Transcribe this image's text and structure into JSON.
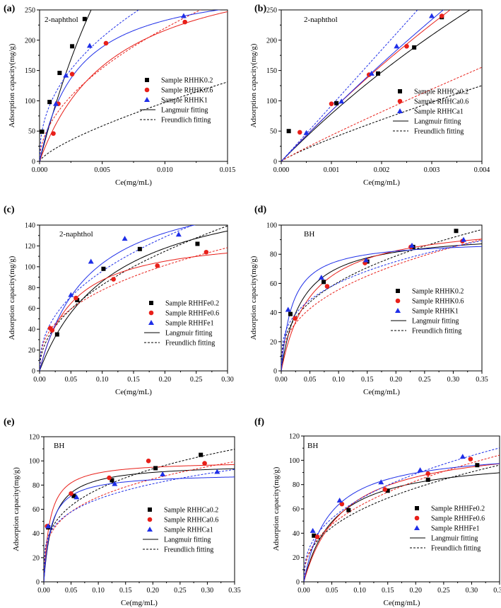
{
  "colors": {
    "black": "#000000",
    "red": "#e8201a",
    "blue": "#1f2fe8"
  },
  "chart_data": [
    {
      "type": "scatter",
      "panel_label": "(a)",
      "annotation": "2-naphthol",
      "xlabel": "Ce(mg/mL)",
      "ylabel": "Adsorption capacity(mg/g)",
      "xlim": [
        0,
        0.015
      ],
      "ylim": [
        0,
        250
      ],
      "xticks": [
        0,
        0.005,
        0.01,
        0.015
      ],
      "xtick_labels": [
        "0.000",
        "0.005",
        "0.010",
        "0.015"
      ],
      "yticks": [
        0,
        50,
        100,
        150,
        200,
        250
      ],
      "ytick_labels": [
        "0",
        "50",
        "100",
        "150",
        "200",
        "250"
      ],
      "legend_position": "right",
      "series": [
        {
          "name": "Sample RHHK0.2",
          "color": "black",
          "marker": "square",
          "points": [
            [
              0.0002,
              49
            ],
            [
              0.0008,
              98
            ],
            [
              0.0016,
              146
            ],
            [
              0.0026,
              190
            ],
            [
              0.0036,
              235
            ]
          ],
          "langmuir": {
            "qm": 1010,
            "k": 80
          },
          "freundlich": {
            "k": 2875,
            "n": 1.36
          }
        },
        {
          "name": "Sample RHHK0.6",
          "color": "red",
          "marker": "circle",
          "points": [
            [
              0.0011,
              46
            ],
            [
              0.0015,
              95
            ],
            [
              0.0026,
              144
            ],
            [
              0.0053,
              195
            ],
            [
              0.0116,
              230
            ]
          ],
          "langmuir": {
            "qm": 347,
            "k": 165
          },
          "freundlich": {
            "k": 2360,
            "n": 1.94
          }
        },
        {
          "name": "Sample RHHK1",
          "color": "blue",
          "marker": "triangle",
          "points": [
            [
              0.0013,
              95
            ],
            [
              0.0021,
              142
            ],
            [
              0.004,
              191
            ],
            [
              0.0115,
              240
            ]
          ],
          "langmuir": {
            "qm": 303,
            "k": 330
          },
          "freundlich": {
            "k": 2050,
            "n": 2.3
          }
        }
      ],
      "fit_legend": {
        "langmuir": "Langmuir fitting",
        "freundlich": "Freundlich fitting"
      }
    },
    {
      "type": "scatter",
      "panel_label": "(b)",
      "annotation": "2-naphthol",
      "xlabel": "Ce(mg/mL)",
      "ylabel": "Adsorption capacity(mg/g)",
      "xlim": [
        0,
        0.004
      ],
      "ylim": [
        0,
        250
      ],
      "xticks": [
        0,
        0.001,
        0.002,
        0.003,
        0.004
      ],
      "xtick_labels": [
        "0.000",
        "0.001",
        "0.002",
        "0.003",
        "0.004"
      ],
      "yticks": [
        0,
        50,
        100,
        150,
        200,
        250
      ],
      "ytick_labels": [
        "0",
        "50",
        "100",
        "150",
        "200",
        "250"
      ],
      "legend_position": "right",
      "series": [
        {
          "name": "Sample RHHCa0.2",
          "color": "black",
          "marker": "square",
          "points": [
            [
              0.00015,
              50
            ],
            [
              0.0011,
              96
            ],
            [
              0.00193,
              145
            ],
            [
              0.00265,
              188
            ],
            [
              0.0032,
              238
            ]
          ],
          "langmuir": {
            "qm": 1200,
            "k": 70
          },
          "freundlich": {
            "k": 14600,
            "n": 1.16
          }
        },
        {
          "name": "Sample RHHCa0.6",
          "color": "red",
          "marker": "circle",
          "points": [
            [
              0.00037,
              48
            ],
            [
              0.001,
              95
            ],
            [
              0.00175,
              143
            ],
            [
              0.0025,
              190
            ],
            [
              0.0032,
              240
            ]
          ],
          "langmuir": {
            "qm": 1600,
            "k": 55
          },
          "freundlich": {
            "k": 25800,
            "n": 1.08
          }
        },
        {
          "name": "Sample RHHCa1",
          "color": "blue",
          "marker": "triangle",
          "points": [
            [
              0.0005,
              47
            ],
            [
              0.0012,
              99
            ],
            [
              0.0018,
              145
            ],
            [
              0.0023,
              190
            ],
            [
              0.003,
              240
            ]
          ],
          "langmuir": {
            "qm": 2400,
            "k": 36
          },
          "freundlich": {
            "k": 92000,
            "n": 1.0
          }
        }
      ],
      "fit_legend": {
        "langmuir": "Langmuir fitting",
        "freundlich": "Freundlich fitting"
      }
    },
    {
      "type": "scatter",
      "panel_label": "(c)",
      "annotation": "2-naphthol",
      "xlabel": "Ce(mg/mL)",
      "ylabel": "Adsorption capacity(mg/g)",
      "xlim": [
        0,
        0.3
      ],
      "ylim": [
        0,
        140
      ],
      "xticks": [
        0,
        0.05,
        0.1,
        0.15,
        0.2,
        0.25,
        0.3
      ],
      "xtick_labels": [
        "0.00",
        "0.05",
        "0.10",
        "0.15",
        "0.20",
        "0.25",
        "0.30"
      ],
      "yticks": [
        0,
        20,
        40,
        60,
        80,
        100,
        120,
        140
      ],
      "ytick_labels": [
        "0",
        "20",
        "40",
        "60",
        "80",
        "100",
        "120",
        "140"
      ],
      "legend_position": "lower-right",
      "series": [
        {
          "name": "Sample RHHFe0.2",
          "color": "black",
          "marker": "square",
          "points": [
            [
              0.028,
              35
            ],
            [
              0.06,
              68
            ],
            [
              0.102,
              98
            ],
            [
              0.16,
              117
            ],
            [
              0.252,
              122
            ]
          ],
          "langmuir": {
            "qm": 187,
            "k": 8.5
          },
          "freundlich": {
            "k": 247,
            "n": 2.1
          }
        },
        {
          "name": "Sample RHHFe0.6",
          "color": "red",
          "marker": "circle",
          "points": [
            [
              0.017,
              41
            ],
            [
              0.02,
              39
            ],
            [
              0.058,
              70
            ],
            [
              0.118,
              88
            ],
            [
              0.188,
              101
            ],
            [
              0.266,
              114
            ]
          ],
          "langmuir": {
            "qm": 133,
            "k": 19
          },
          "freundlich": {
            "k": 188,
            "n": 2.6
          }
        },
        {
          "name": "Sample RHHFe1",
          "color": "blue",
          "marker": "triangle",
          "points": [
            [
              0.05,
              73
            ],
            [
              0.082,
              105
            ],
            [
              0.136,
              127
            ],
            [
              0.222,
              131
            ]
          ],
          "langmuir": {
            "qm": 185,
            "k": 12.6
          },
          "freundlich": {
            "k": 255,
            "n": 2.35
          }
        }
      ],
      "fit_legend": {
        "langmuir": "Langmuir fitting",
        "freundlich": "Freundlich fitting"
      }
    },
    {
      "type": "scatter",
      "panel_label": "(d)",
      "annotation": "BH",
      "xlabel": "Ce(mg/mL)",
      "ylabel": "Adsorption capacity(mg/g)",
      "xlim": [
        0,
        0.35
      ],
      "ylim": [
        0,
        100
      ],
      "xticks": [
        0,
        0.05,
        0.1,
        0.15,
        0.2,
        0.25,
        0.3,
        0.35
      ],
      "xtick_labels": [
        "0.00",
        "0.05",
        "0.10",
        "0.15",
        "0.20",
        "0.25",
        "0.30",
        "0.35"
      ],
      "yticks": [
        0,
        20,
        40,
        60,
        80,
        100
      ],
      "ytick_labels": [
        "0",
        "20",
        "40",
        "60",
        "80",
        "100"
      ],
      "legend_position": "lower-right",
      "series": [
        {
          "name": "Sample RHHK0.2",
          "color": "black",
          "marker": "square",
          "points": [
            [
              0.016,
              39
            ],
            [
              0.074,
              61
            ],
            [
              0.15,
              75
            ],
            [
              0.23,
              85
            ],
            [
              0.305,
              96
            ]
          ],
          "langmuir": {
            "qm": 96,
            "k": 28
          },
          "freundlich": {
            "k": 143,
            "n": 2.7
          }
        },
        {
          "name": "Sample RHHK0.6",
          "color": "red",
          "marker": "circle",
          "points": [
            [
              0.024,
              36
            ],
            [
              0.08,
              58
            ],
            [
              0.146,
              74
            ],
            [
              0.226,
              85
            ],
            [
              0.316,
              89
            ]
          ],
          "langmuir": {
            "qm": 104,
            "k": 19
          },
          "freundlich": {
            "k": 135,
            "n": 2.6
          }
        },
        {
          "name": "Sample RHHK1",
          "color": "blue",
          "marker": "triangle",
          "points": [
            [
              0.012,
              42
            ],
            [
              0.07,
              64
            ],
            [
              0.148,
              76
            ],
            [
              0.228,
              86
            ],
            [
              0.318,
              90
            ]
          ],
          "langmuir": {
            "qm": 90,
            "k": 52
          },
          "freundlich": {
            "k": 124,
            "n": 3.2
          }
        }
      ],
      "fit_legend": {
        "langmuir": "Langmuir fitting",
        "freundlich": "Freundlich fitting"
      }
    },
    {
      "type": "scatter",
      "panel_label": "(e)",
      "annotation": "BH",
      "xlabel": "Ce(mg/mL)",
      "ylabel": "Adsorption capacity(mg/g)",
      "xlim": [
        0,
        0.35
      ],
      "ylim": [
        0,
        120
      ],
      "xticks": [
        0,
        0.05,
        0.1,
        0.15,
        0.2,
        0.25,
        0.3,
        0.35
      ],
      "xtick_labels": [
        "0.00",
        "0.05",
        "0.10",
        "0.15",
        "0.20",
        "0.25",
        "0.30",
        "0.35"
      ],
      "yticks": [
        0,
        20,
        40,
        60,
        80,
        100,
        120
      ],
      "ytick_labels": [
        "0",
        "20",
        "40",
        "60",
        "80",
        "100",
        "120"
      ],
      "legend_position": "lower-right",
      "series": [
        {
          "name": "Sample RHHCa0.2",
          "color": "black",
          "marker": "square",
          "points": [
            [
              0.008,
              45
            ],
            [
              0.055,
              71
            ],
            [
              0.125,
              84
            ],
            [
              0.205,
              94
            ],
            [
              0.288,
              105
            ]
          ],
          "langmuir": {
            "qm": 98,
            "k": 60
          },
          "freundlich": {
            "k": 148,
            "n": 3.5
          }
        },
        {
          "name": "Sample RHHCa0.6",
          "color": "red",
          "marker": "circle",
          "points": [
            [
              0.006,
              46
            ],
            [
              0.05,
              73
            ],
            [
              0.12,
              86
            ],
            [
              0.192,
              100
            ],
            [
              0.295,
              98
            ]
          ],
          "langmuir": {
            "qm": 100,
            "k": 90
          },
          "freundlich": {
            "k": 133,
            "n": 3.6
          }
        },
        {
          "name": "Sample RHHCa1",
          "color": "blue",
          "marker": "triangle",
          "points": [
            [
              0.008,
              46
            ],
            [
              0.06,
              70
            ],
            [
              0.13,
              81
            ],
            [
              0.218,
              89
            ],
            [
              0.318,
              91
            ]
          ],
          "langmuir": {
            "qm": 90,
            "k": 75
          },
          "freundlich": {
            "k": 120,
            "n": 4.1
          }
        }
      ],
      "fit_legend": {
        "langmuir": "Langmuir fitting",
        "freundlich": "Freundlich fitting"
      }
    },
    {
      "type": "scatter",
      "panel_label": "(f)",
      "annotation": "BH",
      "xlabel": "Ce(mg/mL)",
      "ylabel": "Adsorption capacity(mg/g)",
      "xlim": [
        0,
        0.35
      ],
      "ylim": [
        0,
        120
      ],
      "xticks": [
        0,
        0.05,
        0.1,
        0.15,
        0.2,
        0.25,
        0.3,
        0.35
      ],
      "xtick_labels": [
        "0.00",
        "0.05",
        "0.10",
        "0.15",
        "0.20",
        "0.25",
        "0.30",
        "0.35"
      ],
      "yticks": [
        0,
        20,
        40,
        60,
        80,
        100,
        120
      ],
      "ytick_labels": [
        "0",
        "20",
        "40",
        "60",
        "80",
        "100",
        "120"
      ],
      "legend_position": "lower-right",
      "series": [
        {
          "name": "Sample RHHFe0.2",
          "color": "black",
          "marker": "square",
          "points": [
            [
              0.018,
              38
            ],
            [
              0.08,
              59
            ],
            [
              0.15,
              75
            ],
            [
              0.222,
              84
            ],
            [
              0.31,
              96
            ]
          ],
          "langmuir": {
            "qm": 104,
            "k": 18
          },
          "freundlich": {
            "k": 145,
            "n": 2.55
          }
        },
        {
          "name": "Sample RHHFe0.6",
          "color": "red",
          "marker": "circle",
          "points": [
            [
              0.024,
              37
            ],
            [
              0.068,
              64
            ],
            [
              0.145,
              76
            ],
            [
              0.222,
              89
            ],
            [
              0.298,
              101
            ]
          ],
          "langmuir": {
            "qm": 117,
            "k": 14
          },
          "freundlich": {
            "k": 160,
            "n": 2.45
          }
        },
        {
          "name": "Sample RHHFe1",
          "color": "blue",
          "marker": "triangle",
          "points": [
            [
              0.016,
              42
            ],
            [
              0.064,
              67
            ],
            [
              0.138,
              82
            ],
            [
              0.208,
              92
            ],
            [
              0.284,
              103
            ]
          ],
          "langmuir": {
            "qm": 110,
            "k": 22
          },
          "freundlich": {
            "k": 165,
            "n": 2.6
          }
        }
      ],
      "fit_legend": {
        "langmuir": "Langmuir fitting",
        "freundlich": "Freundlich fitting"
      }
    }
  ]
}
